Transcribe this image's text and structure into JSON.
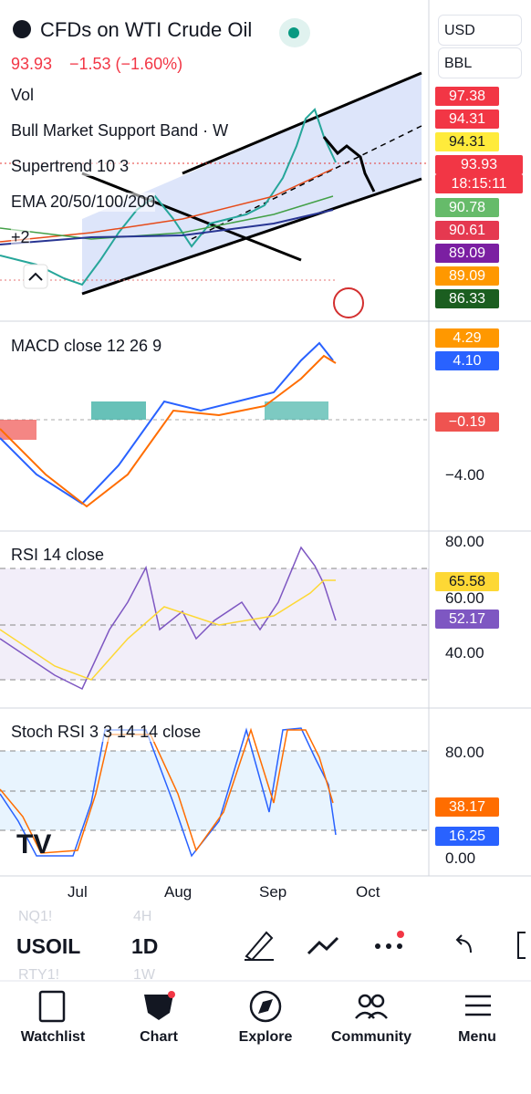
{
  "header": {
    "title": "CFDs on WTI Crude Oil",
    "price": "93.93",
    "change": "−1.53 (−1.60%)",
    "currency": "USD",
    "unit": "BBL"
  },
  "main_pane": {
    "indicators": [
      "Vol",
      "Bull Market Support Band · W",
      "Supertrend 10 3",
      "EMA 20/50/100/200",
      "+2"
    ],
    "price_labels": [
      "97.38",
      "94.31",
      "94.31",
      "93.93",
      "18:15:11",
      "90.78",
      "90.61",
      "89.09",
      "89.09",
      "86.33"
    ]
  },
  "macd": {
    "title": "MACD close 12 26 9",
    "labels": [
      "4.29",
      "4.10",
      "−0.19"
    ],
    "axis": [
      "−4.00"
    ]
  },
  "rsi": {
    "title": "RSI 14 close",
    "axis": [
      "80.00",
      "60.00",
      "40.00"
    ],
    "labels": [
      "65.58",
      "52.17"
    ]
  },
  "stoch": {
    "title": "Stoch RSI 3 3 14 14 close",
    "axis": [
      "80.00",
      "0.00"
    ],
    "labels": [
      "38.17",
      "16.25"
    ]
  },
  "time_axis": [
    "Jul",
    "Aug",
    "Sep",
    "Oct"
  ],
  "toolbar": {
    "symbol": "USOIL",
    "interval": "1D",
    "symbol_above": "NQ1!",
    "symbol_below": "RTY1!",
    "interval_above": "4H",
    "interval_below": "1W"
  },
  "nav": [
    "Watchlist",
    "Chart",
    "Explore",
    "Community",
    "Menu"
  ]
}
